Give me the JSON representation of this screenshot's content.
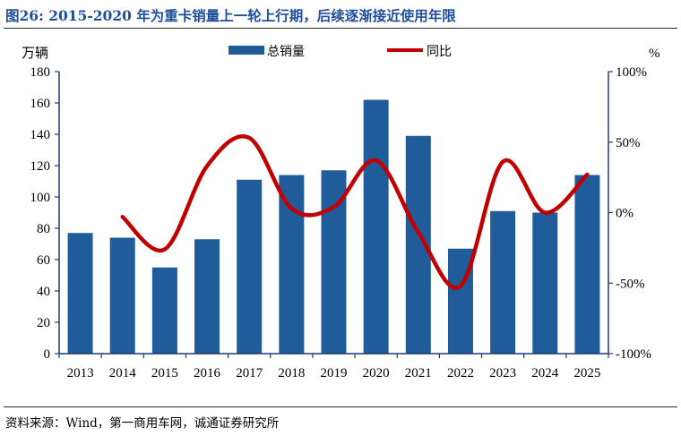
{
  "header": {
    "title": "图26:   2015-2020 年为重卡销量上一轮上行期，后续逐渐接近使用年限"
  },
  "footer": {
    "source": "资料来源：Wind，第一商用车网，诚通证券研究所"
  },
  "colors": {
    "bar": "#1f5c99",
    "line": "#c00000",
    "axis": "#1f3a70",
    "title": "#1f4e9a"
  },
  "chart_data": {
    "type": "bar",
    "categories": [
      "2013",
      "2014",
      "2015",
      "2016",
      "2017",
      "2018",
      "2019",
      "2020",
      "2021",
      "2022",
      "2023",
      "2024",
      "2025"
    ],
    "series": [
      {
        "name": "总销量",
        "type": "bar",
        "axis": "left",
        "values": [
          77,
          74,
          55,
          73,
          111,
          114,
          117,
          162,
          139,
          67,
          91,
          90,
          114
        ]
      },
      {
        "name": "同比",
        "type": "line",
        "axis": "right",
        "values": [
          null,
          -3,
          -26,
          33,
          53,
          3,
          4,
          37,
          -14,
          -52,
          36,
          0,
          27
        ]
      }
    ],
    "left_axis": {
      "unit_label": "万辆",
      "ylim": [
        0,
        180
      ],
      "ticks": [
        "0",
        "20",
        "40",
        "60",
        "80",
        "100",
        "120",
        "140",
        "160",
        "180"
      ]
    },
    "right_axis": {
      "unit_label": "%",
      "ylim": [
        -100,
        100
      ],
      "ticks": [
        "-100%",
        "-50%",
        "0%",
        "50%",
        "100%"
      ]
    },
    "legend": {
      "placement": "top"
    },
    "grid": false
  }
}
